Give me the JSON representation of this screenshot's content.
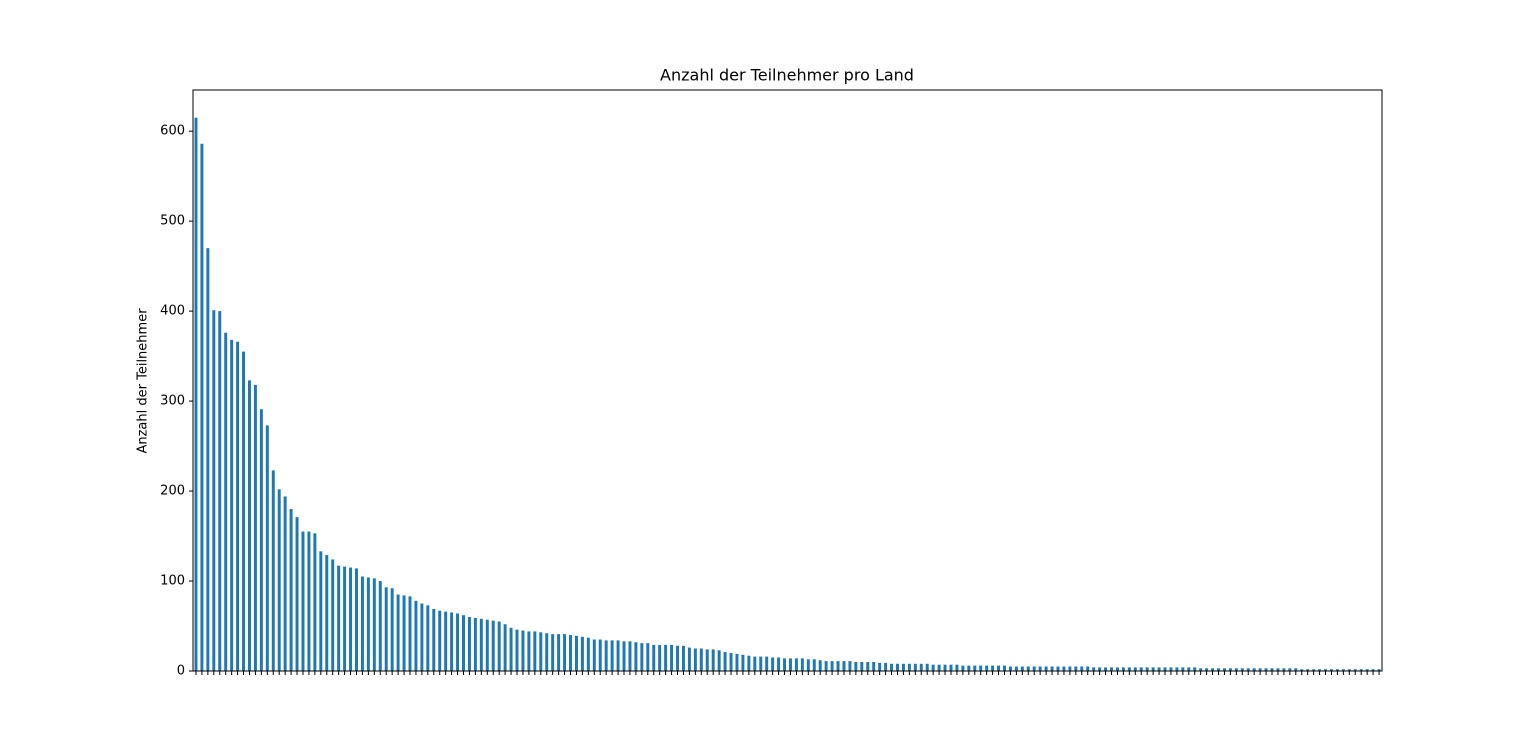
{
  "chart_data": {
    "type": "bar",
    "title": "Anzahl der Teilnehmer pro Land",
    "ylabel": "Anzahl der Teilnehmer",
    "color": "#1f77b4",
    "ylim": [
      0,
      645.75
    ],
    "yticks": [
      0,
      100,
      200,
      300,
      400,
      500,
      600
    ],
    "grid": false,
    "categories": [
      null,
      null,
      null,
      null,
      null,
      null,
      null,
      null,
      null,
      null,
      null,
      null,
      null,
      null,
      null,
      null,
      null,
      null,
      null,
      null,
      null,
      null,
      null,
      null,
      null,
      null,
      null,
      null,
      null,
      null,
      null,
      null,
      null,
      null,
      null,
      null,
      null,
      null,
      null,
      null,
      null,
      null,
      null,
      null,
      null,
      null,
      null,
      null,
      null,
      null,
      null,
      null,
      null,
      null,
      null,
      null,
      null,
      null,
      null,
      null,
      null,
      null,
      null,
      null,
      null,
      null,
      null,
      null,
      null,
      null,
      null,
      null,
      null,
      null,
      null,
      null,
      null,
      null,
      null,
      null,
      null,
      null,
      null,
      null,
      null,
      null,
      null,
      null,
      null,
      null,
      null,
      null,
      null,
      null,
      null,
      null,
      null,
      null,
      null,
      null,
      null,
      null,
      null,
      null,
      null,
      null,
      null,
      null,
      null,
      null,
      null,
      null,
      null,
      null,
      null,
      null,
      null,
      null,
      null,
      null,
      null,
      null,
      null,
      null,
      null,
      null,
      null,
      null,
      null,
      null,
      null,
      null,
      null,
      null,
      null,
      null,
      null,
      null,
      null,
      null,
      null,
      null,
      null,
      null,
      null,
      null,
      null,
      null,
      null,
      null,
      null,
      null,
      null,
      null,
      null,
      null,
      null,
      null,
      null,
      null,
      null,
      null,
      null,
      null,
      null,
      null,
      null,
      null,
      null,
      null,
      null,
      null,
      null,
      null,
      null,
      null,
      null,
      null,
      null,
      null,
      null,
      null,
      null,
      null,
      null,
      null,
      null,
      null,
      null,
      null,
      null,
      null,
      null,
      null,
      null,
      null,
      null,
      null,
      null,
      null
    ],
    "values": [
      615,
      586,
      470,
      401,
      400,
      376,
      368,
      366,
      355,
      323,
      318,
      291,
      273,
      223,
      202,
      194,
      180,
      171,
      155,
      155,
      153,
      133,
      129,
      124,
      117,
      116,
      115,
      114,
      105,
      104,
      103,
      100,
      93,
      92,
      85,
      84,
      83,
      78,
      75,
      73,
      69,
      67,
      66,
      65,
      64,
      62,
      60,
      59,
      58,
      57,
      56,
      55,
      52,
      48,
      46,
      45,
      44,
      44,
      43,
      42,
      41,
      41,
      41,
      40,
      39,
      38,
      37,
      35,
      35,
      34,
      34,
      34,
      33,
      33,
      32,
      31,
      31,
      29,
      29,
      29,
      29,
      28,
      28,
      26,
      25,
      25,
      24,
      24,
      23,
      21,
      20,
      19,
      18,
      17,
      16,
      16,
      16,
      15,
      15,
      14,
      14,
      14,
      14,
      13,
      13,
      12,
      11,
      11,
      11,
      11,
      11,
      10,
      10,
      10,
      10,
      9,
      9,
      8,
      8,
      8,
      8,
      8,
      8,
      8,
      7,
      7,
      7,
      7,
      7,
      6,
      6,
      6,
      6,
      6,
      6,
      6,
      6,
      5,
      5,
      5,
      5,
      5,
      5,
      5,
      5,
      5,
      5,
      5,
      5,
      5,
      5,
      4,
      4,
      4,
      4,
      4,
      4,
      4,
      4,
      4,
      4,
      4,
      4,
      4,
      4,
      4,
      4,
      4,
      4,
      3,
      3,
      3,
      3,
      3,
      3,
      3,
      3,
      3,
      3,
      3,
      3,
      3,
      3,
      3,
      3,
      3,
      2,
      2,
      2,
      2,
      2,
      2,
      2,
      2,
      2,
      2,
      2,
      2,
      2,
      2
    ]
  }
}
